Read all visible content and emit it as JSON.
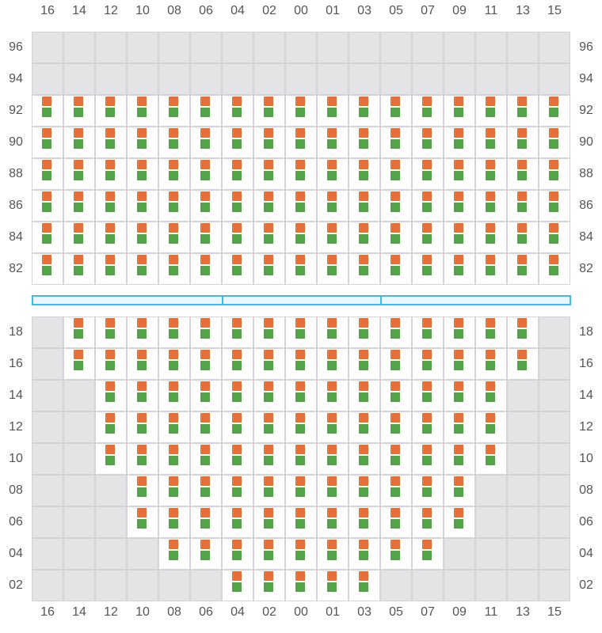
{
  "columns": [
    "16",
    "14",
    "12",
    "10",
    "08",
    "06",
    "04",
    "02",
    "00",
    "01",
    "03",
    "05",
    "07",
    "09",
    "11",
    "13",
    "15"
  ],
  "colors": {
    "marker_top": "#e5703a",
    "marker_bottom": "#56a44a",
    "unavailable": "#e4e4e7",
    "grid": "#d4d4d8",
    "divider": "#3bbcf0"
  },
  "top_section": [
    {
      "row": "96",
      "available": []
    },
    {
      "row": "94",
      "available": []
    },
    {
      "row": "92",
      "available": [
        "16",
        "14",
        "12",
        "10",
        "08",
        "06",
        "04",
        "02",
        "00",
        "01",
        "03",
        "05",
        "07",
        "09",
        "11",
        "13",
        "15"
      ]
    },
    {
      "row": "90",
      "available": [
        "16",
        "14",
        "12",
        "10",
        "08",
        "06",
        "04",
        "02",
        "00",
        "01",
        "03",
        "05",
        "07",
        "09",
        "11",
        "13",
        "15"
      ]
    },
    {
      "row": "88",
      "available": [
        "16",
        "14",
        "12",
        "10",
        "08",
        "06",
        "04",
        "02",
        "00",
        "01",
        "03",
        "05",
        "07",
        "09",
        "11",
        "13",
        "15"
      ]
    },
    {
      "row": "86",
      "available": [
        "16",
        "14",
        "12",
        "10",
        "08",
        "06",
        "04",
        "02",
        "00",
        "01",
        "03",
        "05",
        "07",
        "09",
        "11",
        "13",
        "15"
      ]
    },
    {
      "row": "84",
      "available": [
        "16",
        "14",
        "12",
        "10",
        "08",
        "06",
        "04",
        "02",
        "00",
        "01",
        "03",
        "05",
        "07",
        "09",
        "11",
        "13",
        "15"
      ]
    },
    {
      "row": "82",
      "available": [
        "16",
        "14",
        "12",
        "10",
        "08",
        "06",
        "04",
        "02",
        "00",
        "01",
        "03",
        "05",
        "07",
        "09",
        "11",
        "13",
        "15"
      ]
    }
  ],
  "divider_segments": 3,
  "bottom_section": [
    {
      "row": "18",
      "available": [
        "14",
        "12",
        "10",
        "08",
        "06",
        "04",
        "02",
        "00",
        "01",
        "03",
        "05",
        "07",
        "09",
        "11",
        "13"
      ]
    },
    {
      "row": "16",
      "available": [
        "14",
        "12",
        "10",
        "08",
        "06",
        "04",
        "02",
        "00",
        "01",
        "03",
        "05",
        "07",
        "09",
        "11",
        "13"
      ]
    },
    {
      "row": "14",
      "available": [
        "12",
        "10",
        "08",
        "06",
        "04",
        "02",
        "00",
        "01",
        "03",
        "05",
        "07",
        "09",
        "11"
      ]
    },
    {
      "row": "12",
      "available": [
        "12",
        "10",
        "08",
        "06",
        "04",
        "02",
        "00",
        "01",
        "03",
        "05",
        "07",
        "09",
        "11"
      ]
    },
    {
      "row": "10",
      "available": [
        "12",
        "10",
        "08",
        "06",
        "04",
        "02",
        "00",
        "01",
        "03",
        "05",
        "07",
        "09",
        "11"
      ]
    },
    {
      "row": "08",
      "available": [
        "10",
        "08",
        "06",
        "04",
        "02",
        "00",
        "01",
        "03",
        "05",
        "07",
        "09"
      ]
    },
    {
      "row": "06",
      "available": [
        "10",
        "08",
        "06",
        "04",
        "02",
        "00",
        "01",
        "03",
        "05",
        "07",
        "09"
      ]
    },
    {
      "row": "04",
      "available": [
        "08",
        "06",
        "04",
        "02",
        "00",
        "01",
        "03",
        "05",
        "07"
      ]
    },
    {
      "row": "02",
      "available": [
        "04",
        "02",
        "00",
        "01",
        "03"
      ]
    }
  ]
}
